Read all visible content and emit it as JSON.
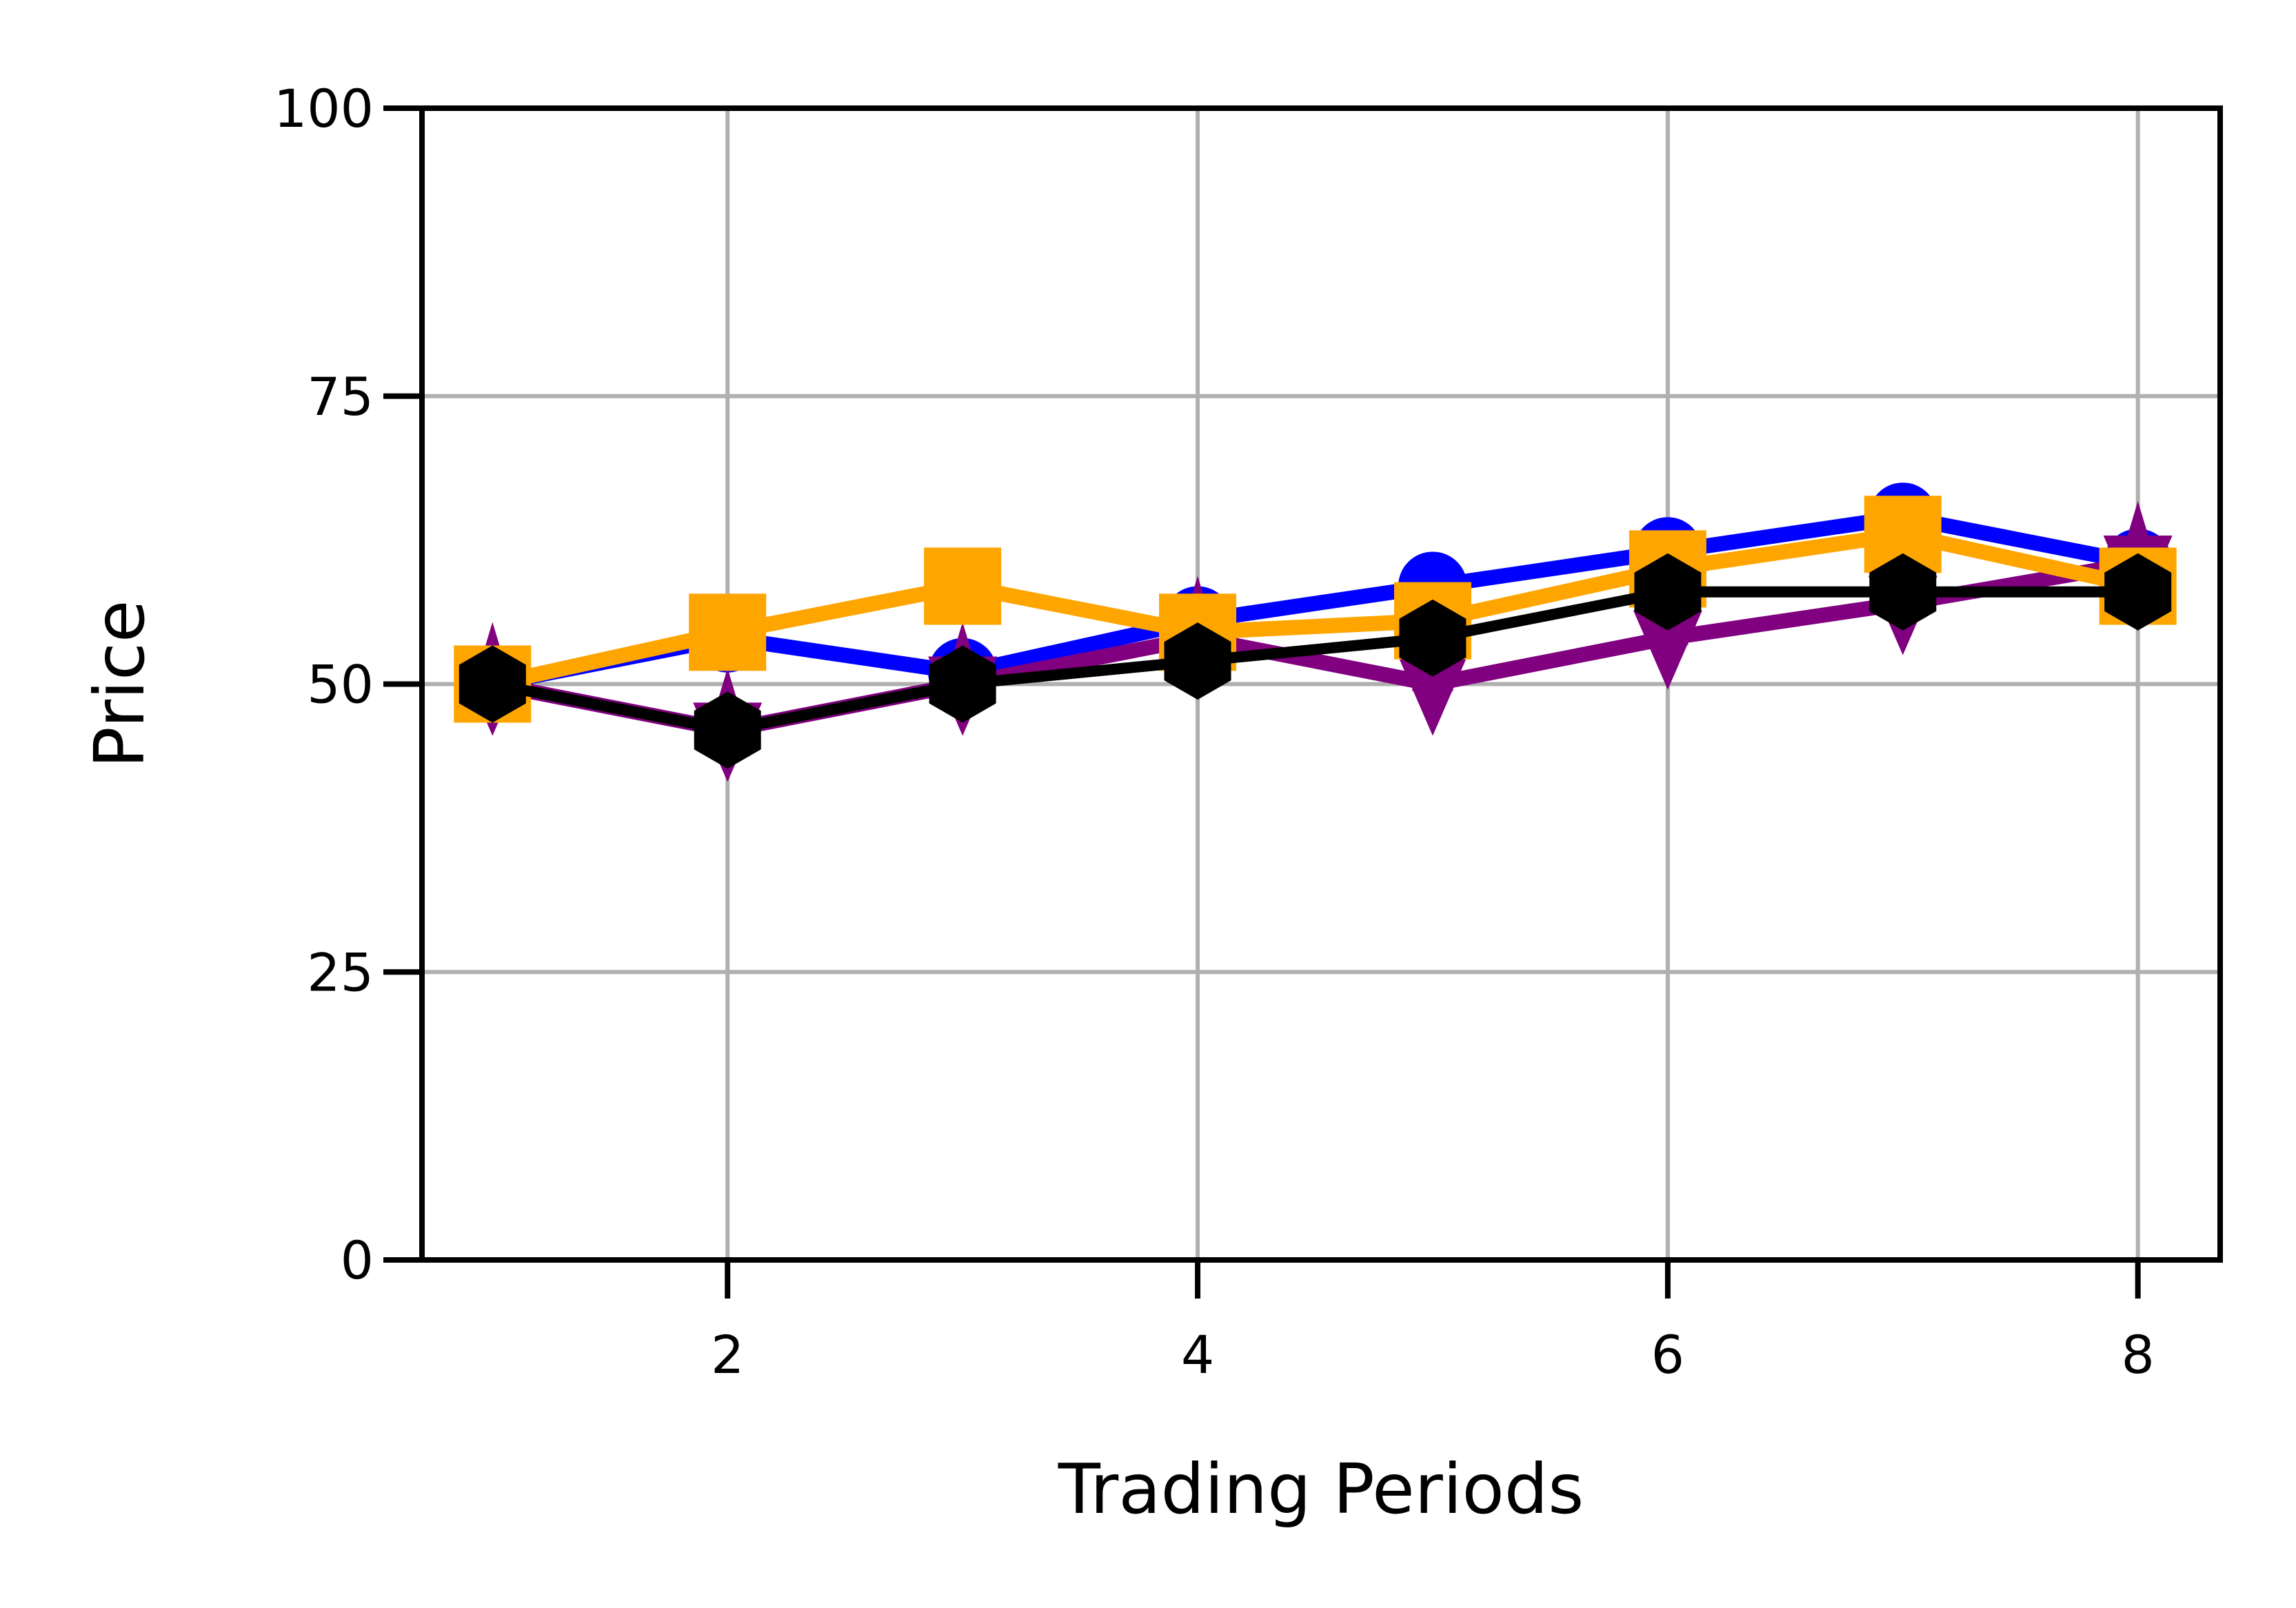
{
  "chart_data": {
    "type": "line",
    "title": "",
    "xlabel": "Trading Periods",
    "ylabel": "Price",
    "xlim": [
      0.7,
      8.35
    ],
    "ylim": [
      0,
      100
    ],
    "xticks": [
      2,
      4,
      6,
      8
    ],
    "yticks": [
      0,
      25,
      50,
      75,
      100
    ],
    "grid": true,
    "legend": "none",
    "x": [
      1,
      2,
      3,
      4,
      5,
      6,
      7,
      8
    ],
    "series": [
      {
        "color": "#0000ff",
        "marker": "circle",
        "values": [
          50,
          54,
          51,
          55.5,
          58.5,
          61.5,
          64.5,
          60.5
        ]
      },
      {
        "color": "#800080",
        "marker": "triangle-down",
        "values": [
          50,
          46,
          50,
          54,
          50,
          54,
          57,
          60.5
        ]
      },
      {
        "color": "#ffa500",
        "marker": "square",
        "values": [
          50,
          54.5,
          58.5,
          54.5,
          55.5,
          60,
          63,
          58.5
        ]
      },
      {
        "color": "#000000",
        "marker": "hexagon",
        "values": [
          50,
          46,
          50,
          52,
          54,
          58,
          58,
          58
        ]
      }
    ]
  }
}
